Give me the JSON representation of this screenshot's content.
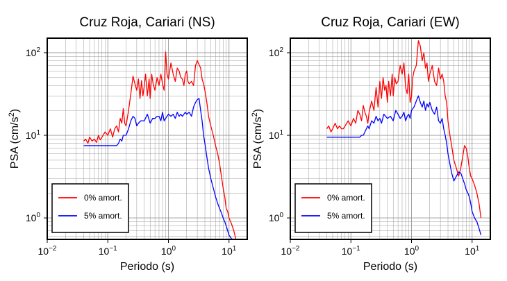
{
  "colors": {
    "zero_damping": "#ff0000",
    "five_damping": "#0000ff",
    "grid": "#999999",
    "frame": "#000000"
  },
  "chart_data": [
    {
      "type": "line",
      "title": "Cruz Roja, Cariari (NS)",
      "xlabel": "Periodo (s)",
      "ylabel_main": "PSA (cm/s",
      "ylabel_sup": "2",
      "ylabel_end": ")",
      "x_scale": "log",
      "y_scale": "log",
      "xlim": [
        0.01,
        20
      ],
      "ylim": [
        0.55,
        150
      ],
      "grid": true,
      "legend_position": "bottom-left",
      "x_ticks": [
        {
          "value": 0.01,
          "base": "10",
          "exp": "−2"
        },
        {
          "value": 0.1,
          "base": "10",
          "exp": "−1"
        },
        {
          "value": 1,
          "base": "10",
          "exp": "0"
        },
        {
          "value": 10,
          "base": "10",
          "exp": "1"
        }
      ],
      "y_ticks": [
        {
          "value": 1,
          "base": "10",
          "exp": "0"
        },
        {
          "value": 10,
          "base": "10",
          "exp": "1"
        },
        {
          "value": 100,
          "base": "10",
          "exp": "2"
        }
      ],
      "series": [
        {
          "name": "0% amort.",
          "color": "#ff0000",
          "x": [
            0.04,
            0.043,
            0.047,
            0.05,
            0.055,
            0.06,
            0.065,
            0.07,
            0.075,
            0.08,
            0.09,
            0.1,
            0.11,
            0.12,
            0.13,
            0.14,
            0.15,
            0.16,
            0.17,
            0.18,
            0.19,
            0.2,
            0.22,
            0.24,
            0.26,
            0.28,
            0.3,
            0.32,
            0.34,
            0.36,
            0.38,
            0.4,
            0.42,
            0.45,
            0.48,
            0.5,
            0.53,
            0.56,
            0.6,
            0.65,
            0.7,
            0.75,
            0.8,
            0.85,
            0.9,
            0.95,
            1.0,
            1.05,
            1.1,
            1.2,
            1.3,
            1.4,
            1.5,
            1.6,
            1.7,
            1.8,
            1.9,
            2.0,
            2.1,
            2.2,
            2.4,
            2.6,
            2.8,
            3.0,
            3.2,
            3.4,
            3.6,
            3.8,
            4.0,
            4.3,
            4.6,
            5.0,
            5.5,
            6.0,
            6.5,
            7.0,
            7.5,
            8.0,
            8.5,
            9.0,
            9.5,
            10,
            11,
            12,
            13
          ],
          "y": [
            8.5,
            9.0,
            8.0,
            9.5,
            8.5,
            9.0,
            8.2,
            10,
            8.8,
            9.5,
            11,
            10,
            12,
            9.5,
            12,
            13,
            11,
            16,
            14,
            21,
            14,
            13,
            20,
            32,
            52,
            42,
            35,
            48,
            28,
            46,
            30,
            40,
            55,
            30,
            48,
            28,
            55,
            42,
            35,
            50,
            40,
            55,
            42,
            35,
            102,
            55,
            48,
            60,
            75,
            55,
            45,
            65,
            60,
            50,
            48,
            40,
            55,
            60,
            45,
            42,
            45,
            40,
            70,
            80,
            72,
            65,
            48,
            42,
            35,
            25,
            17,
            13,
            10,
            7.5,
            6.0,
            4.5,
            3.2,
            2.3,
            1.8,
            1.3,
            1.2,
            1.0,
            0.85,
            0.7,
            0.55
          ]
        },
        {
          "name": "5% amort.",
          "color": "#0000ff",
          "x": [
            0.04,
            0.05,
            0.06,
            0.07,
            0.08,
            0.09,
            0.1,
            0.11,
            0.12,
            0.13,
            0.14,
            0.15,
            0.16,
            0.17,
            0.18,
            0.19,
            0.2,
            0.22,
            0.24,
            0.26,
            0.28,
            0.3,
            0.32,
            0.35,
            0.4,
            0.45,
            0.5,
            0.55,
            0.6,
            0.65,
            0.7,
            0.75,
            0.8,
            0.85,
            0.9,
            0.95,
            1.0,
            1.1,
            1.2,
            1.3,
            1.4,
            1.5,
            1.6,
            1.7,
            1.8,
            1.9,
            2.0,
            2.2,
            2.4,
            2.6,
            2.8,
            3.0,
            3.2,
            3.4,
            3.6,
            3.8,
            4.0,
            4.3,
            4.6,
            5.0,
            5.5,
            6.0,
            6.5,
            7.0,
            7.5,
            8.0,
            8.5,
            9.0,
            9.5,
            10,
            11,
            12
          ],
          "y": [
            7.5,
            7.5,
            7.5,
            7.5,
            7.5,
            7.5,
            7.5,
            7.5,
            7.5,
            7.5,
            7.5,
            8.0,
            9.0,
            8.5,
            10,
            10,
            10,
            12,
            15,
            17,
            16,
            13,
            14,
            15,
            15,
            18,
            14,
            16,
            16,
            17,
            17,
            15,
            19,
            15,
            16,
            17,
            18,
            17,
            18,
            16,
            19,
            17,
            18,
            17,
            18,
            19,
            18,
            19,
            17,
            22,
            25,
            27,
            28,
            20,
            15,
            10,
            8,
            5.5,
            4.0,
            3.0,
            2.3,
            1.8,
            1.5,
            1.3,
            1.15,
            1.0,
            0.9,
            0.8,
            0.7,
            0.62,
            0.56,
            0.52
          ]
        }
      ]
    },
    {
      "type": "line",
      "title": "Cruz Roja, Cariari (EW)",
      "xlabel": "Periodo (s)",
      "ylabel_main": "PSA (cm/s",
      "ylabel_sup": "2",
      "ylabel_end": ")",
      "x_scale": "log",
      "y_scale": "log",
      "xlim": [
        0.01,
        20
      ],
      "ylim": [
        0.55,
        150
      ],
      "grid": true,
      "legend_position": "bottom-left",
      "x_ticks": [
        {
          "value": 0.01,
          "base": "10",
          "exp": "−2"
        },
        {
          "value": 0.1,
          "base": "10",
          "exp": "−1"
        },
        {
          "value": 1,
          "base": "10",
          "exp": "0"
        },
        {
          "value": 10,
          "base": "10",
          "exp": "1"
        }
      ],
      "y_ticks": [
        {
          "value": 1,
          "base": "10",
          "exp": "0"
        },
        {
          "value": 10,
          "base": "10",
          "exp": "1"
        },
        {
          "value": 100,
          "base": "10",
          "exp": "2"
        }
      ],
      "series": [
        {
          "name": "0% amort.",
          "color": "#ff0000",
          "x": [
            0.04,
            0.043,
            0.047,
            0.05,
            0.055,
            0.06,
            0.065,
            0.07,
            0.075,
            0.08,
            0.09,
            0.1,
            0.11,
            0.12,
            0.13,
            0.14,
            0.15,
            0.16,
            0.17,
            0.18,
            0.19,
            0.2,
            0.22,
            0.24,
            0.26,
            0.28,
            0.3,
            0.32,
            0.34,
            0.36,
            0.38,
            0.4,
            0.42,
            0.45,
            0.48,
            0.5,
            0.53,
            0.56,
            0.6,
            0.65,
            0.7,
            0.75,
            0.8,
            0.85,
            0.9,
            0.95,
            1.0,
            1.05,
            1.1,
            1.2,
            1.3,
            1.4,
            1.5,
            1.6,
            1.7,
            1.8,
            1.9,
            2.0,
            2.2,
            2.4,
            2.6,
            2.8,
            3.0,
            3.2,
            3.4,
            3.6,
            3.8,
            4.0,
            4.3,
            4.6,
            5.0,
            5.5,
            6.0,
            6.5,
            7.0,
            7.5,
            8.0,
            8.5,
            9.0,
            9.5,
            10,
            11,
            12,
            13,
            14
          ],
          "y": [
            12,
            13,
            11,
            12,
            14,
            12,
            13,
            12,
            12,
            13,
            15,
            13,
            16,
            14,
            20,
            18,
            15,
            23,
            19,
            17,
            14,
            19,
            26,
            20,
            38,
            22,
            45,
            28,
            50,
            35,
            40,
            25,
            45,
            30,
            55,
            30,
            50,
            42,
            45,
            70,
            55,
            75,
            38,
            32,
            55,
            25,
            30,
            50,
            60,
            70,
            140,
            120,
            80,
            100,
            65,
            75,
            45,
            55,
            70,
            45,
            40,
            65,
            48,
            55,
            45,
            30,
            25,
            15,
            10,
            7.5,
            5.0,
            4.0,
            3.2,
            4.0,
            5.5,
            7.5,
            7.0,
            5.5,
            4.0,
            3.2,
            3.0,
            2.5,
            2.0,
            1.5,
            1.0
          ]
        },
        {
          "name": "5% amort.",
          "color": "#0000ff",
          "x": [
            0.04,
            0.05,
            0.06,
            0.07,
            0.08,
            0.09,
            0.1,
            0.11,
            0.12,
            0.13,
            0.14,
            0.15,
            0.16,
            0.17,
            0.18,
            0.19,
            0.2,
            0.22,
            0.24,
            0.26,
            0.28,
            0.3,
            0.32,
            0.35,
            0.4,
            0.45,
            0.5,
            0.55,
            0.6,
            0.65,
            0.7,
            0.75,
            0.8,
            0.85,
            0.9,
            0.95,
            1.0,
            1.1,
            1.2,
            1.3,
            1.4,
            1.5,
            1.6,
            1.7,
            1.8,
            1.9,
            2.0,
            2.2,
            2.4,
            2.6,
            2.8,
            3.0,
            3.2,
            3.4,
            3.6,
            3.8,
            4.0,
            4.3,
            4.6,
            5.0,
            5.5,
            6.0,
            6.5,
            7.0,
            7.5,
            8.0,
            8.5,
            9.0,
            9.5,
            10,
            11,
            12,
            13,
            14
          ],
          "y": [
            9.5,
            9.5,
            9.5,
            9.5,
            9.5,
            9.5,
            9.5,
            9.5,
            9.5,
            9.5,
            9.5,
            10,
            10,
            11,
            12,
            13,
            12,
            15,
            14,
            17,
            15,
            16,
            14,
            18,
            16,
            17,
            15,
            20,
            18,
            16,
            17,
            19,
            15,
            17,
            18,
            16,
            20,
            22,
            26,
            30,
            25,
            22,
            26,
            20,
            24,
            22,
            25,
            20,
            18,
            22,
            15,
            14,
            16,
            12,
            10,
            8,
            6,
            4.5,
            3.5,
            2.8,
            3.2,
            3.6,
            3.5,
            3.0,
            2.6,
            2.2,
            2.0,
            1.8,
            1.5,
            1.2,
            1.0,
            0.9,
            0.75,
            0.62
          ]
        }
      ]
    }
  ]
}
